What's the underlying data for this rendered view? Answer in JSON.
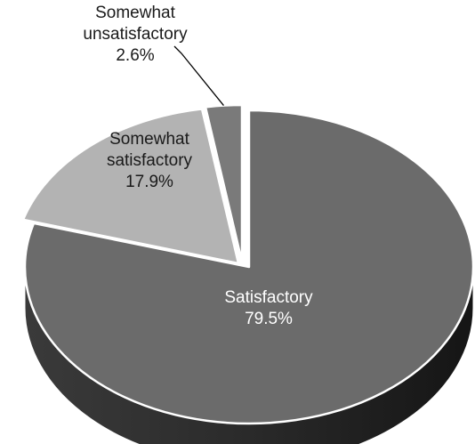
{
  "chart_data": {
    "type": "pie",
    "style": "3d-exploded",
    "title": "",
    "slices": [
      {
        "label_lines": [
          "Satisfactory",
          "79.5%"
        ],
        "category": "Satisfactory",
        "value": 79.5,
        "color": "#6b6b6b",
        "label_color": "#ffffff"
      },
      {
        "label_lines": [
          "Somewhat",
          "satisfactory",
          "17.9%"
        ],
        "category": "Somewhat satisfactory",
        "value": 17.9,
        "color": "#b3b3b3",
        "label_color": "#1a1a1a"
      },
      {
        "label_lines": [
          "Somewhat",
          "unsatisfactory",
          "2.6%"
        ],
        "category": "Somewhat unsatisfactory",
        "value": 2.6,
        "color": "#7a7a7a",
        "label_color": "#1a1a1a"
      }
    ]
  }
}
